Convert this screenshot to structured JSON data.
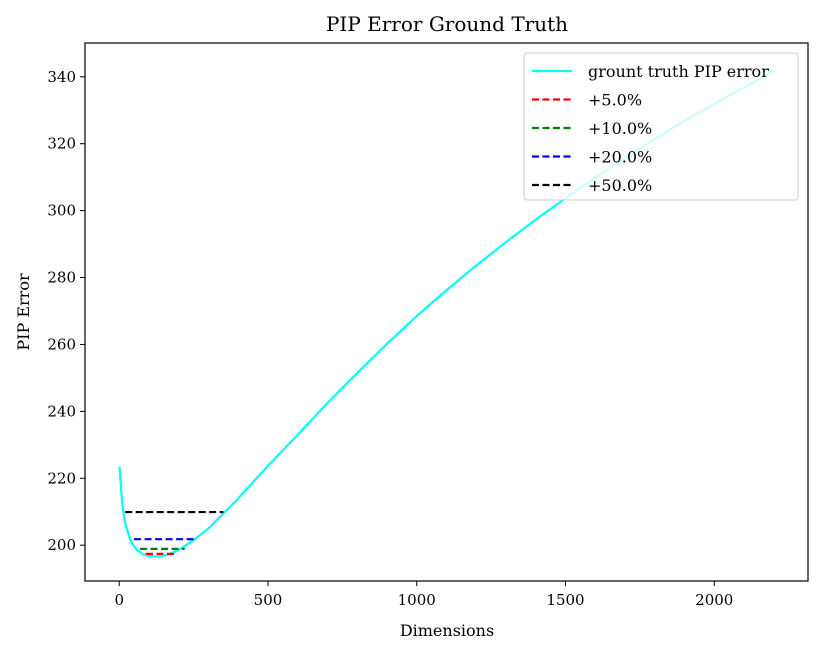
{
  "chart_data": {
    "type": "line",
    "title": "PIP Error Ground Truth",
    "xlabel": "Dimensions",
    "ylabel": "PIP Error",
    "xlim": [
      -115,
      2315
    ],
    "ylim": [
      189.3,
      350.1
    ],
    "xticks": [
      0,
      500,
      1000,
      1500,
      2000
    ],
    "yticks": [
      200,
      220,
      240,
      260,
      280,
      300,
      320,
      340
    ],
    "grid": false,
    "legend_position": "top-right",
    "series": [
      {
        "name": "grount truth PIP error",
        "color": "#00ffff",
        "style": "solid",
        "x": [
          1,
          10,
          20,
          40,
          60,
          80,
          100,
          120,
          140,
          160,
          180,
          200,
          250,
          300,
          350,
          400,
          500,
          600,
          700,
          800,
          900,
          1000,
          1100,
          1200,
          1300,
          1400,
          1500,
          1600,
          1700,
          1800,
          1900,
          2000,
          2100,
          2200
        ],
        "y": [
          223.5,
          212.5,
          206.5,
          201.0,
          198.5,
          197.3,
          196.8,
          196.6,
          196.7,
          197.1,
          197.8,
          198.6,
          201.5,
          205.0,
          209.5,
          214.0,
          223.7,
          233.0,
          242.5,
          251.5,
          260.2,
          268.5,
          276.2,
          283.6,
          290.6,
          297.3,
          303.7,
          309.8,
          315.8,
          321.4,
          326.8,
          331.9,
          336.8,
          341.7
        ]
      },
      {
        "name": "+5.0%",
        "color": "#ff0000",
        "style": "dashed",
        "x": [
          90,
          190
        ],
        "y": [
          197.4,
          197.4
        ]
      },
      {
        "name": "+10.0%",
        "color": "#008000",
        "style": "dashed",
        "x": [
          70,
          220
        ],
        "y": [
          198.9,
          198.9
        ]
      },
      {
        "name": "+20.0%",
        "color": "#0000ff",
        "style": "dashed",
        "x": [
          50,
          260
        ],
        "y": [
          201.8,
          201.8
        ]
      },
      {
        "name": "+50.0%",
        "color": "#000000",
        "style": "dashed",
        "x": [
          20,
          350
        ],
        "y": [
          209.9,
          209.9
        ]
      }
    ]
  }
}
